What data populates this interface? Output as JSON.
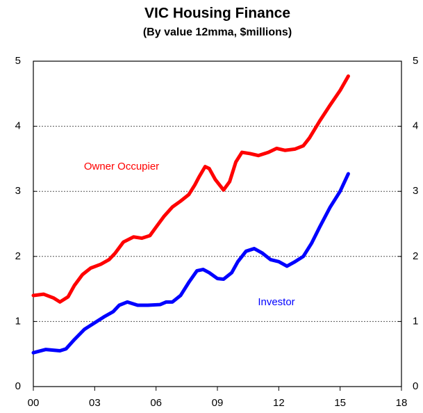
{
  "chart_data": {
    "type": "line",
    "title": "VIC Housing Finance",
    "subtitle": "(By value 12mma, $millions)",
    "xlim": [
      2000,
      2018
    ],
    "xticks": [
      {
        "value": 2000,
        "label": "00"
      },
      {
        "value": 2003,
        "label": "03"
      },
      {
        "value": 2006,
        "label": "06"
      },
      {
        "value": 2009,
        "label": "09"
      },
      {
        "value": 2012,
        "label": "12"
      },
      {
        "value": 2015,
        "label": "15"
      },
      {
        "value": 2018,
        "label": "18"
      }
    ],
    "ylim": [
      0,
      5
    ],
    "yticks": [
      0,
      1,
      2,
      3,
      4,
      5
    ],
    "y2lim": [
      0,
      5
    ],
    "y2ticks": [
      0,
      1,
      2,
      3,
      4,
      5
    ],
    "grid": true,
    "series": [
      {
        "name": "Owner Occupier",
        "color": "#ff0000",
        "x": [
          2000.0,
          2000.5,
          2001.0,
          2001.3,
          2001.7,
          2002.0,
          2002.4,
          2002.8,
          2003.3,
          2003.7,
          2004.0,
          2004.4,
          2004.9,
          2005.3,
          2005.7,
          2006.0,
          2006.4,
          2006.8,
          2007.2,
          2007.6,
          2007.9,
          2008.1,
          2008.4,
          2008.6,
          2008.9,
          2009.3,
          2009.6,
          2009.9,
          2010.2,
          2010.6,
          2011.0,
          2011.5,
          2011.9,
          2012.3,
          2012.8,
          2013.2,
          2013.5,
          2014.0,
          2014.5,
          2015.0,
          2015.4
        ],
        "values": [
          1.4,
          1.42,
          1.36,
          1.3,
          1.38,
          1.55,
          1.72,
          1.82,
          1.88,
          1.95,
          2.05,
          2.22,
          2.3,
          2.28,
          2.32,
          2.45,
          2.62,
          2.76,
          2.85,
          2.95,
          3.1,
          3.22,
          3.38,
          3.35,
          3.18,
          3.02,
          3.15,
          3.45,
          3.6,
          3.58,
          3.55,
          3.6,
          3.66,
          3.63,
          3.65,
          3.7,
          3.82,
          4.08,
          4.32,
          4.55,
          4.77
        ]
      },
      {
        "name": "Investor",
        "color": "#0000ff",
        "x": [
          2000.0,
          2000.6,
          2001.3,
          2001.6,
          2002.0,
          2002.5,
          2003.0,
          2003.5,
          2003.9,
          2004.2,
          2004.6,
          2005.1,
          2005.6,
          2006.2,
          2006.5,
          2006.8,
          2007.2,
          2007.6,
          2008.0,
          2008.3,
          2008.6,
          2009.0,
          2009.3,
          2009.7,
          2010.0,
          2010.4,
          2010.8,
          2011.2,
          2011.6,
          2012.0,
          2012.4,
          2012.8,
          2013.2,
          2013.6,
          2014.0,
          2014.5,
          2015.0,
          2015.4
        ],
        "values": [
          0.52,
          0.57,
          0.55,
          0.58,
          0.72,
          0.88,
          0.98,
          1.08,
          1.15,
          1.25,
          1.3,
          1.25,
          1.25,
          1.26,
          1.3,
          1.3,
          1.4,
          1.6,
          1.78,
          1.8,
          1.75,
          1.66,
          1.65,
          1.75,
          1.92,
          2.08,
          2.12,
          2.05,
          1.95,
          1.92,
          1.85,
          1.92,
          2.0,
          2.2,
          2.45,
          2.75,
          3.0,
          3.27
        ]
      }
    ]
  }
}
